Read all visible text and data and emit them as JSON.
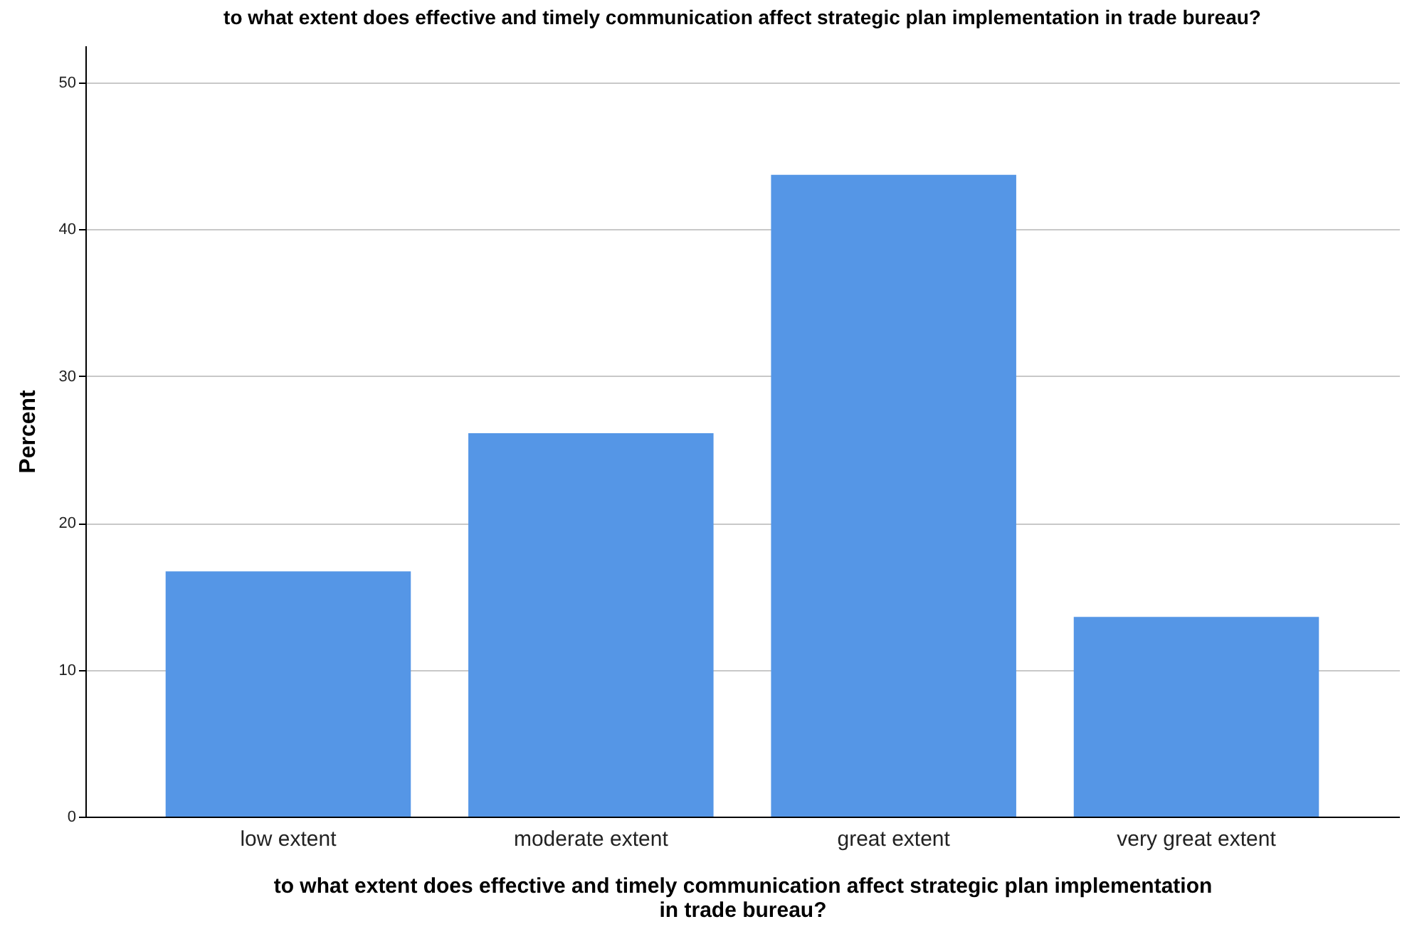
{
  "chart_data": {
    "type": "bar",
    "title": "to what extent does effective and timely communication affect strategic plan implementation in trade bureau?",
    "xlabel": "to what extent does effective and timely communication affect strategic plan implementation in trade bureau?",
    "ylabel": "Percent",
    "categories": [
      "low extent",
      "moderate extent",
      "great extent",
      "very great extent"
    ],
    "values": [
      16.7,
      26.1,
      43.7,
      13.6
    ],
    "color": "#5596e6",
    "ylim": [
      0,
      52.5
    ],
    "yticks": [
      0,
      10,
      20,
      30,
      40,
      50
    ],
    "grid": "y"
  }
}
